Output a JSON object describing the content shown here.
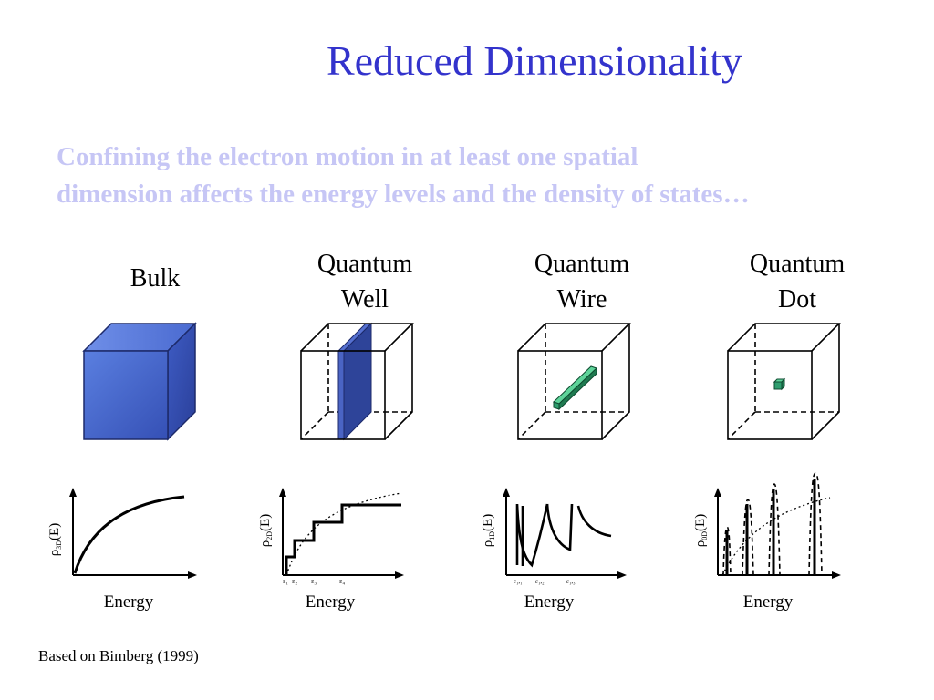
{
  "title": "Reduced Dimensionality",
  "subtitle_line1": "Confining the electron motion in at least one spatial",
  "subtitle_line2": "dimension affects the energy levels and the density of states…",
  "columns": [
    {
      "label_line1": "Bulk",
      "label_line2": "",
      "ylabel_main": "ρ",
      "ylabel_sub": "3D",
      "ylabel_tail": "(E)",
      "xlabel": "Energy"
    },
    {
      "label_line1": "Quantum",
      "label_line2": "Well",
      "ylabel_main": "ρ",
      "ylabel_sub": "2D",
      "ylabel_tail": "(E)",
      "xlabel": "Energy"
    },
    {
      "label_line1": "Quantum",
      "label_line2": "Wire",
      "ylabel_main": "ρ",
      "ylabel_sub": "1D",
      "ylabel_tail": "(E)",
      "xlabel": "Energy"
    },
    {
      "label_line1": "Quantum",
      "label_line2": "Dot",
      "ylabel_main": "ρ",
      "ylabel_sub": "0D",
      "ylabel_tail": "(E)",
      "xlabel": "Energy"
    }
  ],
  "well_ticks": [
    "ε₁",
    "ε₂",
    "ε₃",
    "ε₄"
  ],
  "wire_ticks": [
    "ε₁,₁",
    "ε₁,₂",
    "ε₁,₃"
  ],
  "credit": "Based on Bimberg (1999)",
  "colors": {
    "title": "#3333cc",
    "subtitle": "#c6c6f5",
    "bulk_cube": "#4a6fd6",
    "well_slab": "#3b55b8",
    "wire_rod": "#2e9e6e",
    "dot_cube": "#2e9e6e"
  }
}
